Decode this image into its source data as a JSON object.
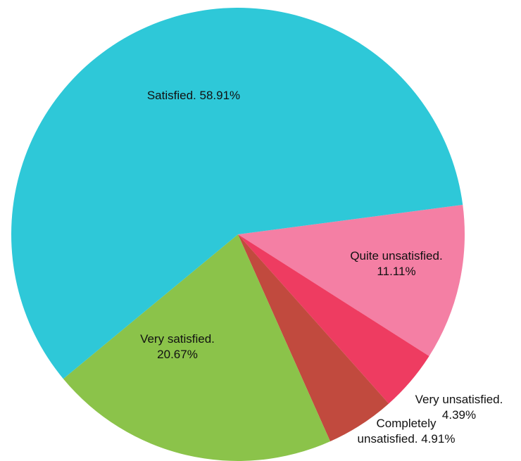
{
  "chart_data": {
    "type": "pie",
    "title": "",
    "slices": [
      {
        "category": "Quite unsatisfied",
        "value": 11.11,
        "label_lines": [
          "Quite unsatisfied.",
          "11.11%"
        ],
        "color": "#F47FA4"
      },
      {
        "category": "Very unsatisfied",
        "value": 4.39,
        "label_lines": [
          "Very unsatisfied.",
          "4.39%"
        ],
        "color": "#EE3C61"
      },
      {
        "category": "Completely unsatisfied",
        "value": 4.91,
        "label_lines": [
          "Completely",
          "unsatisfied. 4.91%"
        ],
        "color": "#C14A3E"
      },
      {
        "category": "Very satisfied",
        "value": 20.67,
        "label_lines": [
          "Very satisfied.",
          "20.67%"
        ],
        "color": "#8BC34A"
      },
      {
        "category": "Satisfied",
        "value": 58.91,
        "label_lines": [
          "Satisfied. 58.91%"
        ],
        "color": "#2EC8D8"
      }
    ]
  }
}
